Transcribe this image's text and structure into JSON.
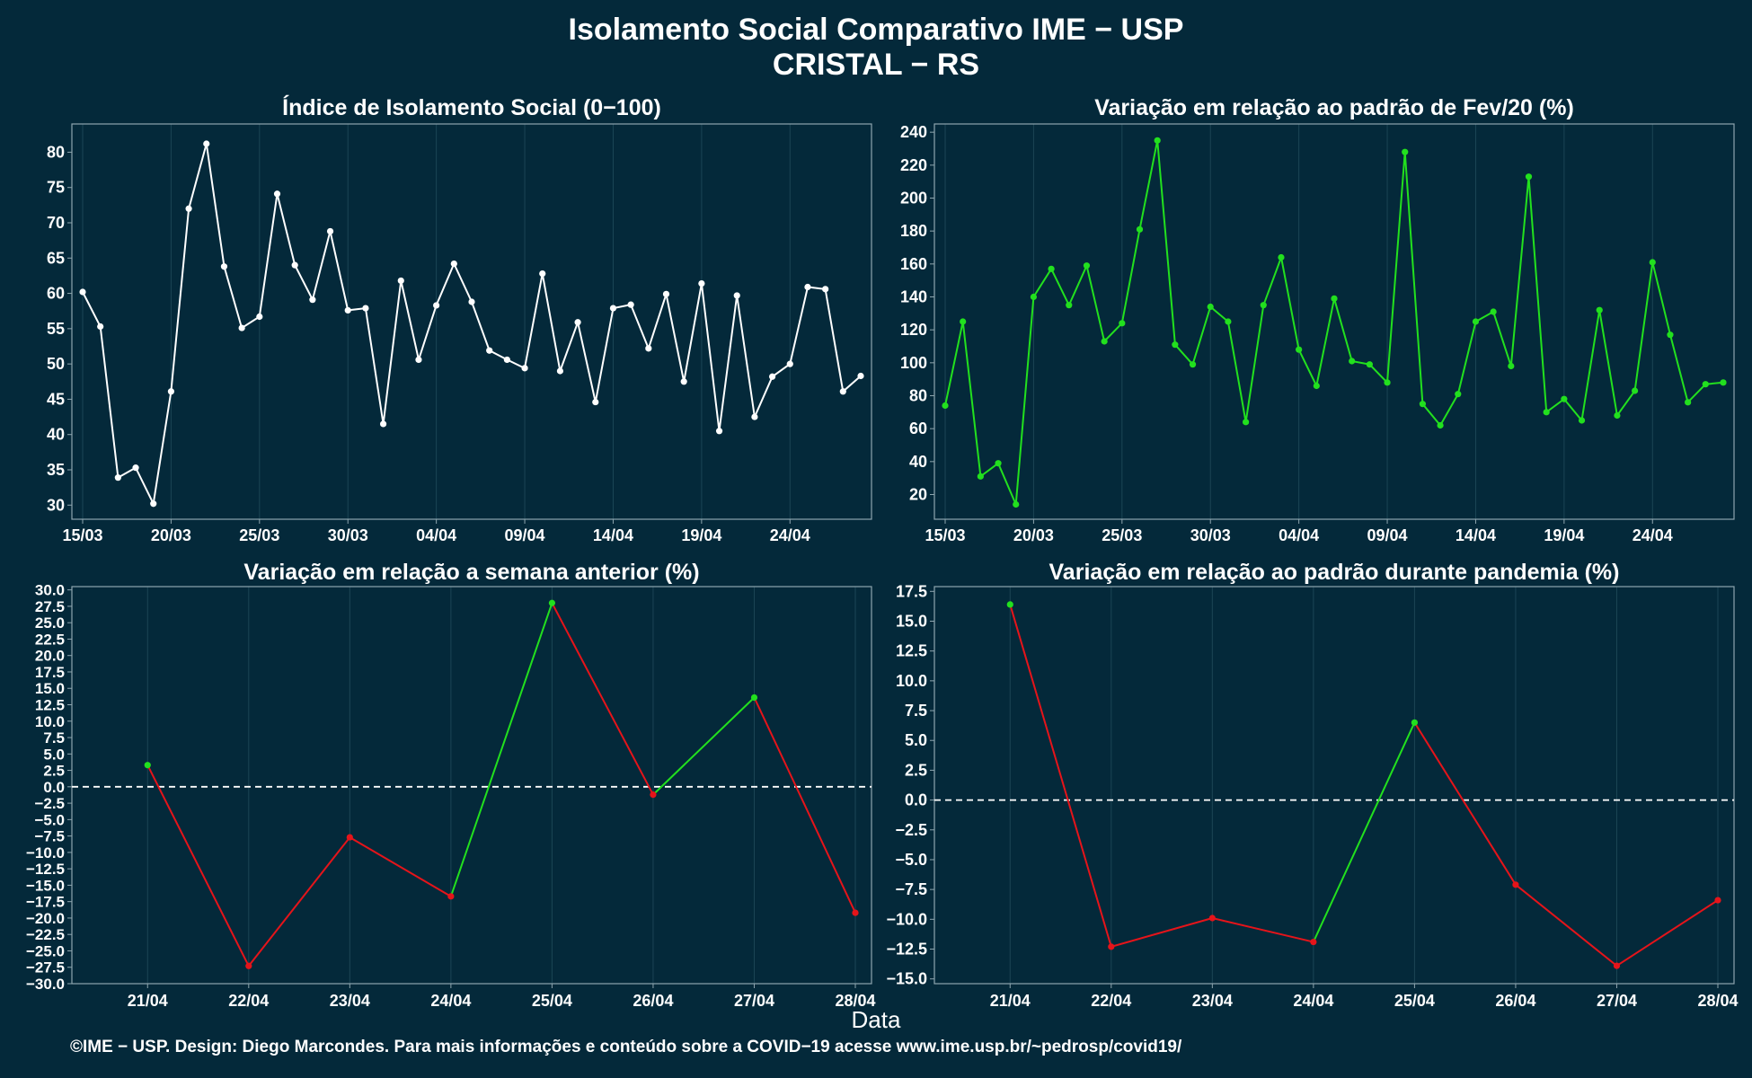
{
  "header": {
    "title_line1": "Isolamento Social Comparativo IME − USP",
    "title_line2": "CRISTAL − RS"
  },
  "footer": {
    "credit": "©IME − USP. Design: Diego Marcondes. Para mais informações e conteúdo sobre a COVID−19 acesse www.ime.usp.br/~pedrosp/covid19/"
  },
  "shared_xlabel": "Data",
  "colors": {
    "background": "#04293a",
    "panel_border": "#8ea5ae",
    "grid": "#1c4555",
    "white": "#ffffff",
    "green": "#22e01e",
    "red": "#e5141a"
  },
  "chart_data": [
    {
      "id": "isolation-index",
      "type": "line",
      "title": "Índice de Isolamento Social (0−100)",
      "x_tick_labels": [
        "15/03",
        "20/03",
        "25/03",
        "30/03",
        "04/04",
        "09/04",
        "14/04",
        "19/04",
        "24/04"
      ],
      "x": [
        "15/03",
        "16/03",
        "17/03",
        "18/03",
        "19/03",
        "20/03",
        "21/03",
        "22/03",
        "23/03",
        "24/03",
        "25/03",
        "26/03",
        "27/03",
        "28/03",
        "29/03",
        "30/03",
        "31/03",
        "01/04",
        "02/04",
        "03/04",
        "04/04",
        "05/04",
        "06/04",
        "07/04",
        "08/04",
        "09/04",
        "10/04",
        "11/04",
        "12/04",
        "13/04",
        "14/04",
        "15/04",
        "16/04",
        "17/04",
        "18/04",
        "19/04",
        "20/04",
        "21/04",
        "22/04",
        "23/04",
        "24/04",
        "25/04",
        "26/04",
        "27/04",
        "28/04"
      ],
      "series": [
        {
          "color": "#ffffff",
          "values": [
            60.2,
            55.3,
            33.9,
            35.3,
            30.2,
            46.1,
            72.0,
            81.2,
            63.8,
            55.1,
            56.7,
            74.1,
            64.0,
            59.1,
            68.8,
            57.6,
            57.9,
            41.5,
            61.8,
            50.6,
            58.3,
            64.2,
            58.8,
            51.9,
            50.6,
            49.4,
            62.8,
            49.0,
            55.9,
            44.6,
            57.9,
            58.4,
            52.2,
            59.9,
            47.5,
            61.4,
            40.5,
            59.7,
            42.5,
            48.2,
            50.0,
            60.9,
            60.6,
            46.1,
            48.3
          ]
        }
      ],
      "ylim": [
        28,
        84
      ],
      "y_ticks": [
        30,
        35,
        40,
        45,
        50,
        55,
        60,
        65,
        70,
        75,
        80
      ]
    },
    {
      "id": "feb-variation",
      "type": "line",
      "title": "Variação em relação ao padrão de Fev/20 (%)",
      "x_tick_labels": [
        "15/03",
        "20/03",
        "25/03",
        "30/03",
        "04/04",
        "09/04",
        "14/04",
        "19/04",
        "24/04"
      ],
      "x": [
        "15/03",
        "16/03",
        "17/03",
        "18/03",
        "19/03",
        "20/03",
        "21/03",
        "22/03",
        "23/03",
        "24/03",
        "25/03",
        "26/03",
        "27/03",
        "28/03",
        "29/03",
        "30/03",
        "31/03",
        "01/04",
        "02/04",
        "03/04",
        "04/04",
        "05/04",
        "06/04",
        "07/04",
        "08/04",
        "09/04",
        "10/04",
        "11/04",
        "12/04",
        "13/04",
        "14/04",
        "15/04",
        "16/04",
        "17/04",
        "18/04",
        "19/04",
        "20/04",
        "21/04",
        "22/04",
        "23/04",
        "24/04",
        "25/04",
        "26/04",
        "27/04",
        "28/04"
      ],
      "series": [
        {
          "color": "#22e01e",
          "values": [
            74,
            125,
            31,
            39,
            14,
            140,
            157,
            135,
            159,
            113,
            124,
            181,
            235,
            111,
            99,
            134,
            125,
            64,
            135,
            164,
            108,
            86,
            139,
            101,
            99,
            88,
            228,
            75,
            62,
            81,
            125,
            131,
            98,
            213,
            70,
            78,
            65,
            132,
            68,
            83,
            161,
            117,
            76,
            87,
            88
          ]
        }
      ],
      "ylim": [
        5,
        245
      ],
      "y_ticks": [
        20,
        40,
        60,
        80,
        100,
        120,
        140,
        160,
        180,
        200,
        220,
        240
      ]
    },
    {
      "id": "week-variation",
      "type": "line",
      "title": "Variação em relação a semana anterior (%)",
      "x": [
        "21/04",
        "22/04",
        "23/04",
        "24/04",
        "25/04",
        "26/04",
        "27/04",
        "28/04"
      ],
      "values": [
        3.3,
        -27.3,
        -7.7,
        -16.7,
        28.0,
        -1.2,
        13.6,
        -19.2
      ],
      "point_colors": [
        "#22e01e",
        "#e5141a",
        "#e5141a",
        "#e5141a",
        "#22e01e",
        "#e5141a",
        "#22e01e",
        "#e5141a"
      ],
      "segment_colors": [
        "#e5141a",
        "#e5141a",
        "#e5141a",
        "#22e01e",
        "#e5141a",
        "#22e01e",
        "#e5141a"
      ],
      "reference_line": 0,
      "ylim": [
        -30,
        30.5
      ],
      "y_ticks": [
        -30.0,
        -27.5,
        -25.0,
        -22.5,
        -20.0,
        -17.5,
        -15.0,
        -12.5,
        -10.0,
        -7.5,
        -5.0,
        -2.5,
        0.0,
        2.5,
        5.0,
        7.5,
        10.0,
        12.5,
        15.0,
        17.5,
        20.0,
        22.5,
        25.0,
        27.5,
        30.0
      ]
    },
    {
      "id": "pandemic-variation",
      "type": "line",
      "title": "Variação em relação ao padrão durante pandemia (%)",
      "x": [
        "21/04",
        "22/04",
        "23/04",
        "24/04",
        "25/04",
        "26/04",
        "27/04",
        "28/04"
      ],
      "values": [
        16.4,
        -12.3,
        -9.9,
        -11.9,
        6.5,
        -7.1,
        -13.9,
        -8.4
      ],
      "point_colors": [
        "#22e01e",
        "#e5141a",
        "#e5141a",
        "#e5141a",
        "#22e01e",
        "#e5141a",
        "#e5141a",
        "#e5141a"
      ],
      "segment_colors": [
        "#e5141a",
        "#e5141a",
        "#e5141a",
        "#22e01e",
        "#e5141a",
        "#e5141a",
        "#e5141a"
      ],
      "reference_line": 0,
      "ylim": [
        -15.4,
        17.9
      ],
      "y_ticks": [
        -15.0,
        -12.5,
        -10.0,
        -7.5,
        -5.0,
        -2.5,
        0.0,
        2.5,
        5.0,
        7.5,
        10.0,
        12.5,
        15.0,
        17.5
      ]
    }
  ]
}
